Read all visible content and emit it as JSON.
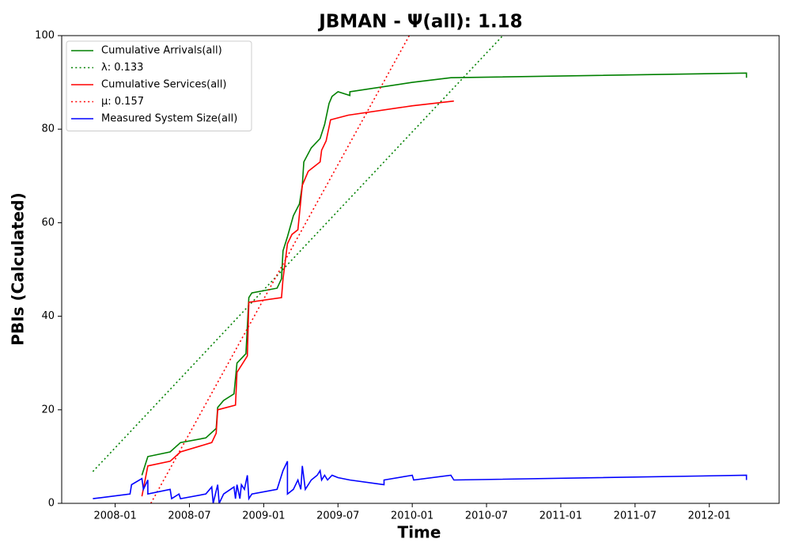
{
  "chart_data": {
    "type": "line",
    "title": "JBMAN -  Ψ(all): 1.18",
    "x_label": "Time",
    "y_label": "PBIs (Calculated)",
    "xlim": [
      2007.64,
      2012.47
    ],
    "xticks": [
      {
        "value": 2008.0,
        "label": "2008-01"
      },
      {
        "value": 2008.5,
        "label": "2008-07"
      },
      {
        "value": 2009.0,
        "label": "2009-01"
      },
      {
        "value": 2009.5,
        "label": "2009-07"
      },
      {
        "value": 2010.0,
        "label": "2010-01"
      },
      {
        "value": 2010.5,
        "label": "2010-07"
      },
      {
        "value": 2011.0,
        "label": "2011-01"
      },
      {
        "value": 2011.5,
        "label": "2011-07"
      },
      {
        "value": 2012.0,
        "label": "2012-01"
      }
    ],
    "ylim": [
      0,
      100
    ],
    "yticks": [
      0,
      20,
      40,
      60,
      80,
      100
    ],
    "legend": "upper left",
    "series": [
      {
        "name": "Cumulative Arrivals(all)",
        "color": "#008000",
        "style": "solid",
        "x": [
          2008.18,
          2008.22,
          2008.37,
          2008.44,
          2008.61,
          2008.68,
          2008.69,
          2008.73,
          2008.8,
          2008.82,
          2008.88,
          2008.9,
          2008.92,
          2009.09,
          2009.12,
          2009.13,
          2009.16,
          2009.2,
          2009.24,
          2009.26,
          2009.27,
          2009.32,
          2009.38,
          2009.41,
          2009.44,
          2009.46,
          2009.5,
          2009.58,
          2009.58,
          2010.0,
          2010.26,
          2012.25,
          2012.25
        ],
        "values": [
          6,
          10,
          11,
          13,
          14,
          16,
          20.5,
          22,
          23.4,
          30,
          32,
          44,
          45,
          46,
          48,
          54,
          57,
          61.5,
          64,
          68,
          73,
          76,
          78,
          81,
          85.5,
          87,
          88,
          87.2,
          88,
          90,
          91,
          92,
          91
        ]
      },
      {
        "name": "λ: 0.133",
        "color": "#008000",
        "style": "dotted",
        "x": [
          2007.85,
          2010.61
        ],
        "values": [
          6.8,
          100
        ]
      },
      {
        "name": "Cumulative Services(all)",
        "color": "#ff0000",
        "style": "solid",
        "x": [
          2008.18,
          2008.22,
          2008.37,
          2008.44,
          2008.65,
          2008.68,
          2008.69,
          2008.81,
          2008.82,
          2008.86,
          2008.89,
          2008.9,
          2009.12,
          2009.13,
          2009.16,
          2009.19,
          2009.23,
          2009.26,
          2009.3,
          2009.38,
          2009.39,
          2009.42,
          2009.45,
          2009.57,
          2010.0,
          2010.28
        ],
        "values": [
          1.5,
          8,
          9,
          11,
          13,
          15,
          20,
          21,
          28,
          30,
          31.5,
          43,
          44,
          48,
          55.5,
          57.5,
          58.5,
          68,
          71,
          73,
          75.5,
          77.5,
          82,
          83,
          85,
          86
        ]
      },
      {
        "name": "μ: 0.157",
        "color": "#ff0000",
        "style": "dotted",
        "x": [
          2008.24,
          2009.98
        ],
        "values": [
          0,
          100
        ]
      },
      {
        "name": "Measured System Size(all)",
        "color": "#0000ff",
        "style": "solid",
        "x": [
          2007.85,
          2008.1,
          2008.11,
          2008.18,
          2008.19,
          2008.22,
          2008.22,
          2008.37,
          2008.38,
          2008.43,
          2008.44,
          2008.61,
          2008.65,
          2008.66,
          2008.69,
          2008.7,
          2008.73,
          2008.8,
          2008.81,
          2008.82,
          2008.84,
          2008.85,
          2008.87,
          2008.89,
          2008.9,
          2008.92,
          2009.09,
          2009.13,
          2009.16,
          2009.16,
          2009.2,
          2009.23,
          2009.25,
          2009.26,
          2009.28,
          2009.32,
          2009.36,
          2009.38,
          2009.39,
          2009.41,
          2009.43,
          2009.46,
          2009.5,
          2009.58,
          2009.81,
          2009.81,
          2010.0,
          2010.01,
          2010.26,
          2010.28,
          2012.25,
          2012.25
        ],
        "values": [
          1,
          2,
          4,
          5.3,
          3,
          5,
          2,
          3,
          1,
          2,
          1,
          2,
          3.5,
          0,
          4,
          0,
          2,
          3.5,
          1,
          4,
          1,
          4,
          3,
          6,
          1,
          2,
          3,
          7,
          9,
          2,
          3,
          5,
          3,
          8,
          3,
          5,
          6,
          7,
          5,
          6,
          5,
          6,
          5.5,
          5,
          4,
          5,
          6,
          5,
          6,
          5,
          6,
          5
        ]
      }
    ]
  }
}
